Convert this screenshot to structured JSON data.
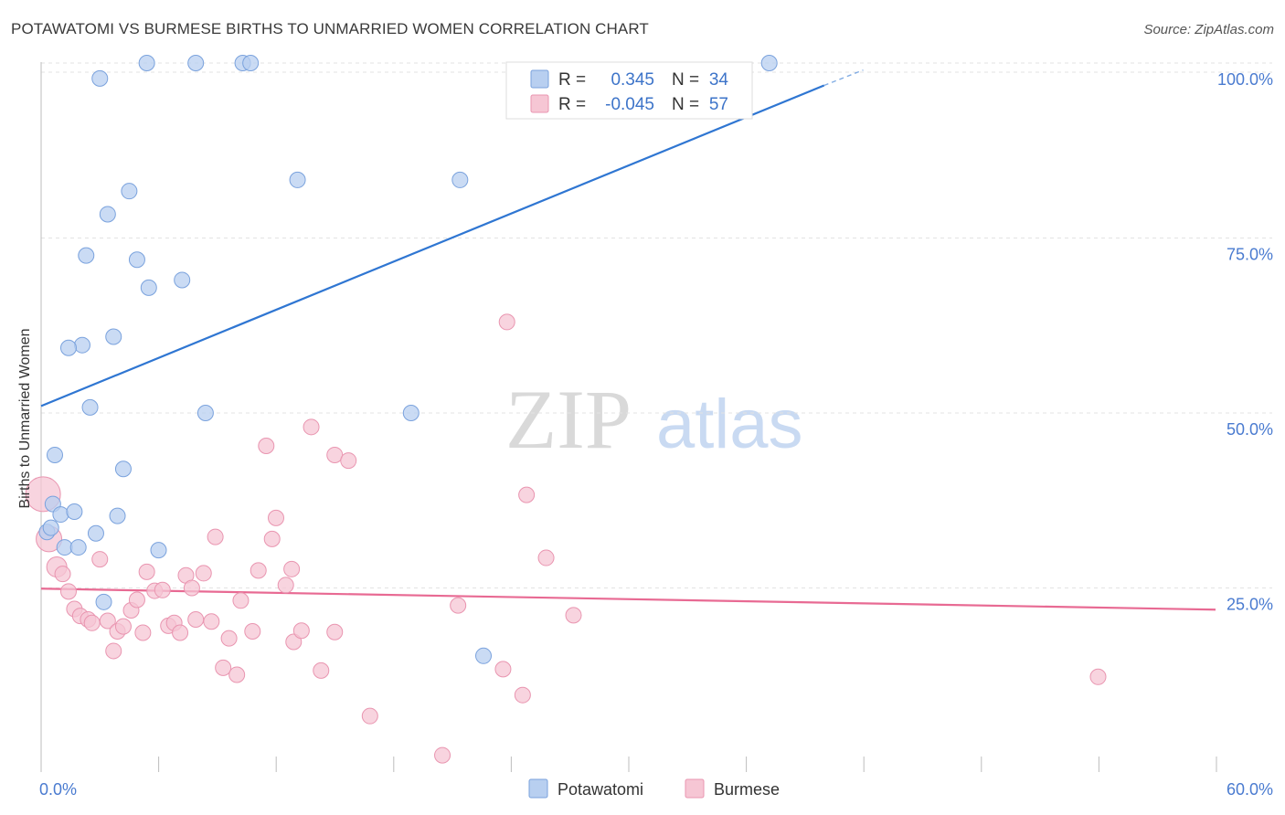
{
  "title": "POTAWATOMI VS BURMESE BIRTHS TO UNMARRIED WOMEN CORRELATION CHART",
  "source": "Source: ZipAtlas.com",
  "watermark": {
    "zip": "ZIP",
    "atlas": "atlas"
  },
  "legend": {
    "rows": [
      {
        "r_label": "R =",
        "r_value": "0.345",
        "n_label": "N =",
        "n_value": "34"
      },
      {
        "r_label": "R =",
        "r_value": "-0.045",
        "n_label": "N =",
        "n_value": "57"
      }
    ]
  },
  "colors": {
    "blue_fill": "#b8cff0",
    "blue_stroke": "#7aa2dd",
    "blue_line": "#2f76d2",
    "pink_fill": "#f6c6d4",
    "pink_stroke": "#e995b0",
    "pink_line": "#e86a93",
    "grid": "#e3e3e3",
    "axis_text": "#4a7bd0"
  },
  "chart_data": {
    "type": "scatter",
    "title": "POTAWATOMI VS BURMESE BIRTHS TO UNMARRIED WOMEN CORRELATION CHART",
    "xlabel": "",
    "ylabel": "Births to Unmarried Women",
    "xlim": [
      0,
      60
    ],
    "ylim": [
      0,
      100
    ],
    "x_ticks": [
      "0.0%",
      "60.0%"
    ],
    "y_ticks": [
      "25.0%",
      "50.0%",
      "75.0%",
      "100.0%"
    ],
    "y_tick_values": [
      25,
      50,
      75,
      100
    ],
    "grid": true,
    "legend_position": "top-center",
    "series": [
      {
        "name": "Potawatomi",
        "color": "blue",
        "points": [
          [
            3.0,
            97.8
          ],
          [
            5.4,
            100
          ],
          [
            7.9,
            100
          ],
          [
            10.3,
            100
          ],
          [
            10.7,
            100
          ],
          [
            37.2,
            100
          ],
          [
            4.5,
            81.7
          ],
          [
            3.4,
            78.4
          ],
          [
            13.1,
            83.3
          ],
          [
            21.4,
            83.3
          ],
          [
            2.3,
            72.5
          ],
          [
            4.9,
            71.9
          ],
          [
            7.2,
            69.0
          ],
          [
            5.5,
            67.9
          ],
          [
            3.7,
            60.9
          ],
          [
            2.1,
            59.7
          ],
          [
            1.4,
            59.3
          ],
          [
            2.5,
            50.8
          ],
          [
            8.4,
            50.0
          ],
          [
            18.9,
            50.0
          ],
          [
            0.7,
            44.0
          ],
          [
            4.2,
            42.0
          ],
          [
            0.6,
            37.0
          ],
          [
            1.0,
            35.5
          ],
          [
            1.7,
            35.9
          ],
          [
            3.9,
            35.3
          ],
          [
            0.3,
            33.0
          ],
          [
            2.8,
            32.8
          ],
          [
            0.5,
            33.6
          ],
          [
            1.2,
            30.8
          ],
          [
            1.9,
            30.8
          ],
          [
            6.0,
            30.4
          ],
          [
            3.2,
            23.0
          ],
          [
            22.6,
            15.3
          ]
        ],
        "trend": {
          "x0": 0,
          "y0": 51.0,
          "x1": 40.0,
          "y1": 96.8,
          "dash_to_x": 42.0,
          "dash_to_y": 99.0
        }
      },
      {
        "name": "Burmese",
        "color": "pink",
        "points": [
          [
            0.1,
            38.4
          ],
          [
            0.4,
            32.0
          ],
          [
            0.8,
            28.0
          ],
          [
            1.1,
            27.0
          ],
          [
            1.4,
            24.5
          ],
          [
            1.7,
            22.0
          ],
          [
            2.0,
            21.0
          ],
          [
            2.4,
            20.5
          ],
          [
            2.6,
            20.0
          ],
          [
            3.0,
            29.1
          ],
          [
            3.4,
            20.3
          ],
          [
            3.7,
            16.0
          ],
          [
            3.9,
            18.8
          ],
          [
            4.2,
            19.5
          ],
          [
            4.6,
            21.8
          ],
          [
            4.9,
            23.3
          ],
          [
            5.2,
            18.6
          ],
          [
            5.4,
            27.3
          ],
          [
            5.8,
            24.6
          ],
          [
            6.2,
            24.7
          ],
          [
            6.5,
            19.6
          ],
          [
            6.8,
            20.0
          ],
          [
            7.1,
            18.6
          ],
          [
            7.4,
            26.8
          ],
          [
            7.7,
            25.0
          ],
          [
            7.9,
            20.5
          ],
          [
            8.3,
            27.1
          ],
          [
            8.7,
            20.2
          ],
          [
            8.9,
            32.3
          ],
          [
            9.3,
            13.6
          ],
          [
            9.6,
            17.8
          ],
          [
            10.0,
            12.6
          ],
          [
            10.2,
            23.2
          ],
          [
            10.8,
            18.8
          ],
          [
            11.1,
            27.5
          ],
          [
            11.5,
            45.3
          ],
          [
            11.8,
            32.0
          ],
          [
            12.0,
            35.0
          ],
          [
            12.5,
            25.4
          ],
          [
            12.8,
            27.7
          ],
          [
            12.9,
            17.3
          ],
          [
            13.3,
            18.9
          ],
          [
            13.8,
            48.0
          ],
          [
            14.3,
            13.2
          ],
          [
            15.0,
            44.0
          ],
          [
            15.0,
            18.7
          ],
          [
            15.7,
            43.2
          ],
          [
            16.8,
            6.7
          ],
          [
            20.5,
            1.1
          ],
          [
            21.3,
            22.5
          ],
          [
            23.6,
            13.4
          ],
          [
            23.8,
            63.0
          ],
          [
            24.6,
            9.7
          ],
          [
            24.8,
            38.3
          ],
          [
            25.8,
            29.3
          ],
          [
            27.2,
            21.1
          ],
          [
            54.0,
            12.3
          ]
        ],
        "trend": {
          "x0": 0,
          "y0": 24.9,
          "x1": 60.0,
          "y1": 21.9
        }
      }
    ]
  }
}
